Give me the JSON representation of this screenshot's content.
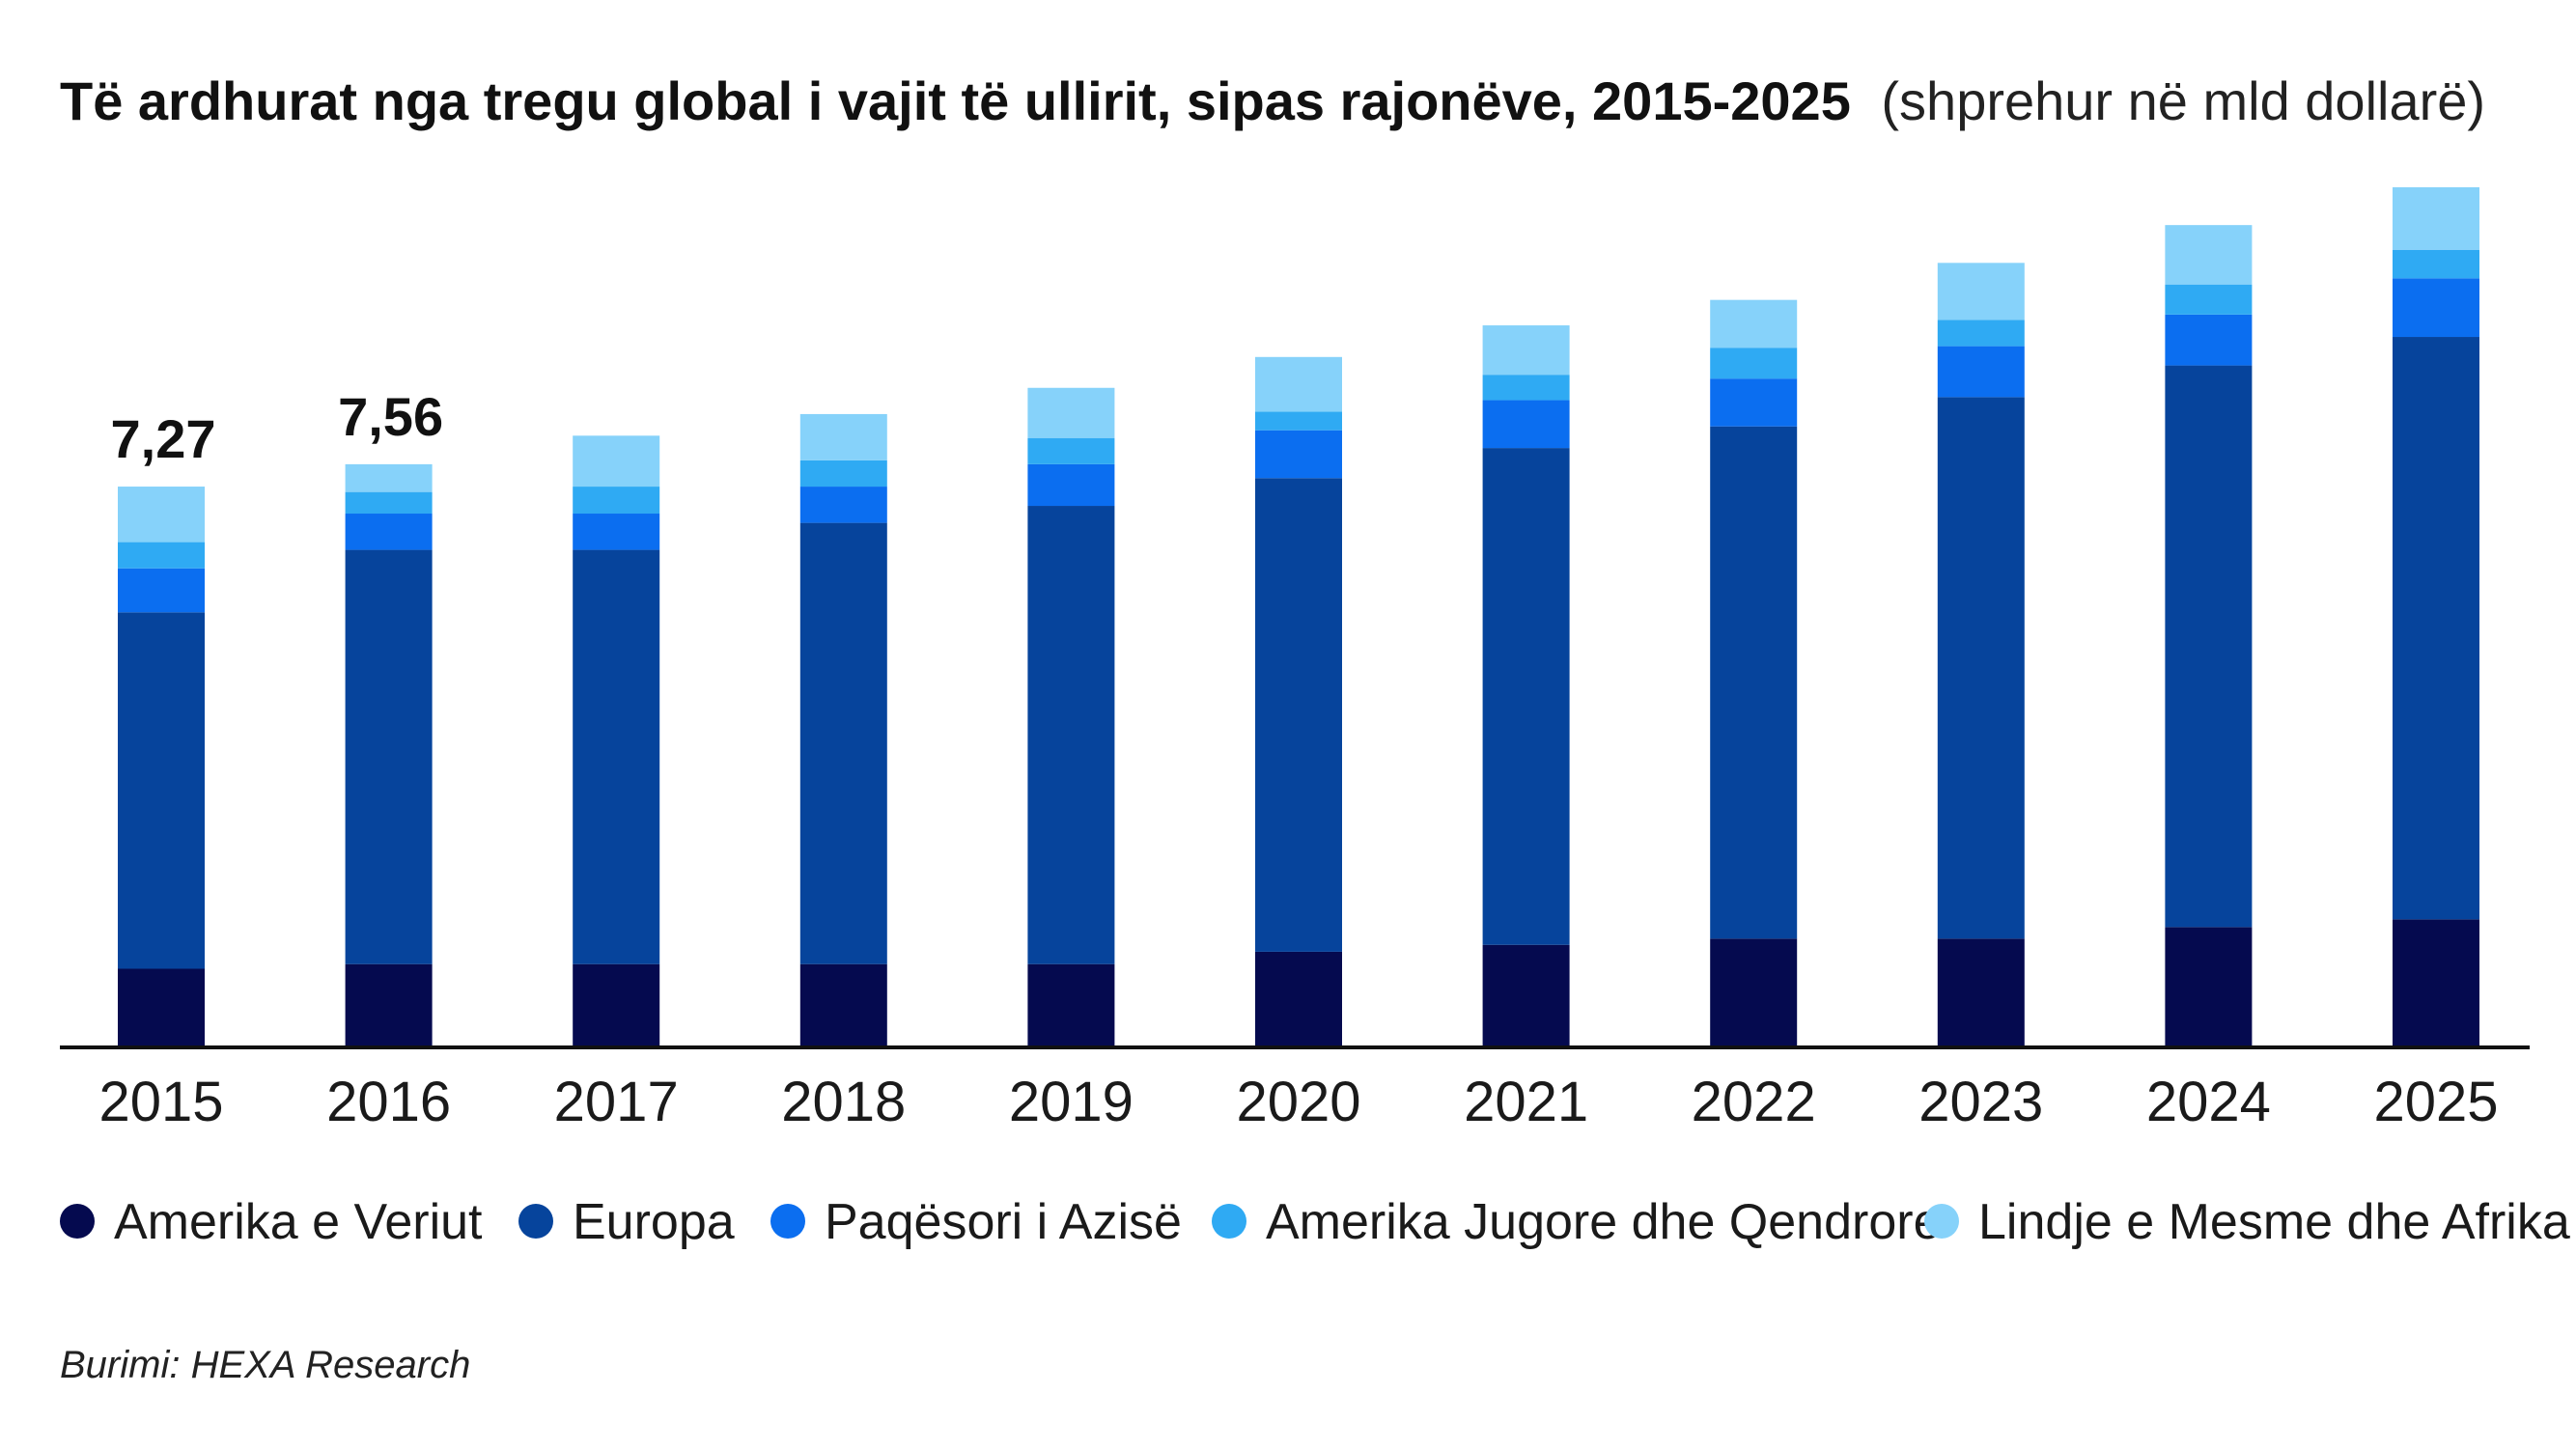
{
  "colors": {
    "north_america": "#050A4F",
    "europe": "#06449C",
    "asia_pacific": "#0B6EF0",
    "south_central_america": "#2FAAF3",
    "mea": "#86D2FA",
    "axis": "#111111"
  },
  "chart_data": {
    "type": "bar",
    "stacked": true,
    "title": "Të ardhurat nga tregu global i vajit të ullirit, sipas rajonëve, 2015-2025",
    "subtitle": "(shprehur në mld dollarë)",
    "categories": [
      "2015",
      "2016",
      "2017",
      "2018",
      "2019",
      "2020",
      "2021",
      "2022",
      "2023",
      "2024",
      "2025"
    ],
    "series": [
      {
        "name": "Amerika e Veriut",
        "color_key": "north_america",
        "values": [
          1.02,
          1.08,
          1.08,
          1.08,
          1.08,
          1.24,
          1.33,
          1.41,
          1.41,
          1.56,
          1.66
        ]
      },
      {
        "name": "Europa",
        "color_key": "europe",
        "values": [
          4.62,
          5.37,
          5.37,
          5.72,
          5.94,
          6.14,
          6.44,
          6.64,
          7.02,
          7.28,
          7.55
        ]
      },
      {
        "name": "Paqësori i Azisë",
        "color_key": "asia_pacific",
        "values": [
          0.57,
          0.47,
          0.47,
          0.47,
          0.54,
          0.62,
          0.62,
          0.62,
          0.66,
          0.66,
          0.76
        ]
      },
      {
        "name": "Amerika Jugore dhe Qendrore",
        "color_key": "south_central_america",
        "values": [
          0.34,
          0.28,
          0.35,
          0.34,
          0.34,
          0.24,
          0.33,
          0.4,
          0.34,
          0.39,
          0.37
        ]
      },
      {
        "name": "Lindje e Mesme dhe Afrika",
        "color_key": "mea",
        "values": [
          0.72,
          0.36,
          0.66,
          0.6,
          0.65,
          0.71,
          0.64,
          0.62,
          0.74,
          0.77,
          0.81
        ]
      }
    ],
    "data_labels": [
      {
        "category": "2015",
        "text": "7,27"
      },
      {
        "category": "2016",
        "text": "7,56"
      }
    ],
    "ylim": [
      0,
      11.2
    ],
    "grid": false,
    "legend_position": "bottom",
    "xlabel": "",
    "ylabel": "",
    "source": "Burimi: HEXA Research"
  }
}
